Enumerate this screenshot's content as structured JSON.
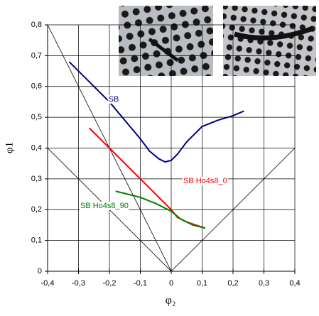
{
  "chart_data": {
    "type": "line",
    "xlabel": "φ₂",
    "ylabel": "φ1",
    "xlim": [
      -0.4,
      0.4
    ],
    "ylim": [
      0,
      0.8
    ],
    "xticks": [
      {
        "value": -0.4,
        "label": "-0,4"
      },
      {
        "value": -0.3,
        "label": "-0,3"
      },
      {
        "value": -0.2,
        "label": "-0,2"
      },
      {
        "value": -0.1,
        "label": "-0,1"
      },
      0,
      {
        "value": 0.1,
        "label": "0,1"
      },
      {
        "value": 0.2,
        "label": "0,2"
      },
      {
        "value": 0.3,
        "label": "0,3"
      },
      {
        "value": 0.4,
        "label": "0,4"
      }
    ],
    "yticks": [
      0,
      {
        "value": 0.1,
        "label": "0,1"
      },
      {
        "value": 0.2,
        "label": "0,2"
      },
      {
        "value": 0.3,
        "label": "0,3"
      },
      {
        "value": 0.4,
        "label": "0,4"
      },
      {
        "value": 0.5,
        "label": "0,5"
      },
      {
        "value": 0.6,
        "label": "0,6"
      },
      {
        "value": 0.7,
        "label": "0,7"
      },
      {
        "value": 0.8,
        "label": "0,8"
      }
    ],
    "grid": true,
    "reference_lines": [
      {
        "x": [
          -0.4,
          0
        ],
        "y": [
          0.8,
          0
        ]
      },
      {
        "x": [
          -0.4,
          0
        ],
        "y": [
          0.4,
          0
        ]
      },
      {
        "x": [
          0,
          0.4
        ],
        "y": [
          0,
          0.4
        ]
      }
    ],
    "series": [
      {
        "name": "SB",
        "color": "#000080",
        "x": [
          -0.33,
          -0.25,
          -0.2,
          -0.15,
          -0.1,
          -0.07,
          -0.04,
          -0.02,
          0,
          0.02,
          0.05,
          0.08,
          0.1,
          0.15,
          0.2,
          0.235
        ],
        "values": [
          0.68,
          0.6,
          0.55,
          0.49,
          0.43,
          0.39,
          0.365,
          0.355,
          0.36,
          0.38,
          0.42,
          0.45,
          0.47,
          0.49,
          0.505,
          0.52
        ]
      },
      {
        "name": "SB Ho4s8_0",
        "color": "#ff0000",
        "x": [
          -0.265,
          -0.2,
          -0.1,
          -0.05,
          0,
          0.02,
          0.05,
          0.11
        ],
        "values": [
          0.465,
          0.4,
          0.3,
          0.25,
          0.2,
          0.175,
          0.16,
          0.14
        ]
      },
      {
        "name": "SB Ho4s8_90",
        "color": "#008000",
        "x": [
          -0.18,
          -0.1,
          -0.05,
          0,
          0.03,
          0.07,
          0.11
        ],
        "values": [
          0.26,
          0.24,
          0.22,
          0.195,
          0.17,
          0.15,
          0.14
        ]
      }
    ]
  }
}
